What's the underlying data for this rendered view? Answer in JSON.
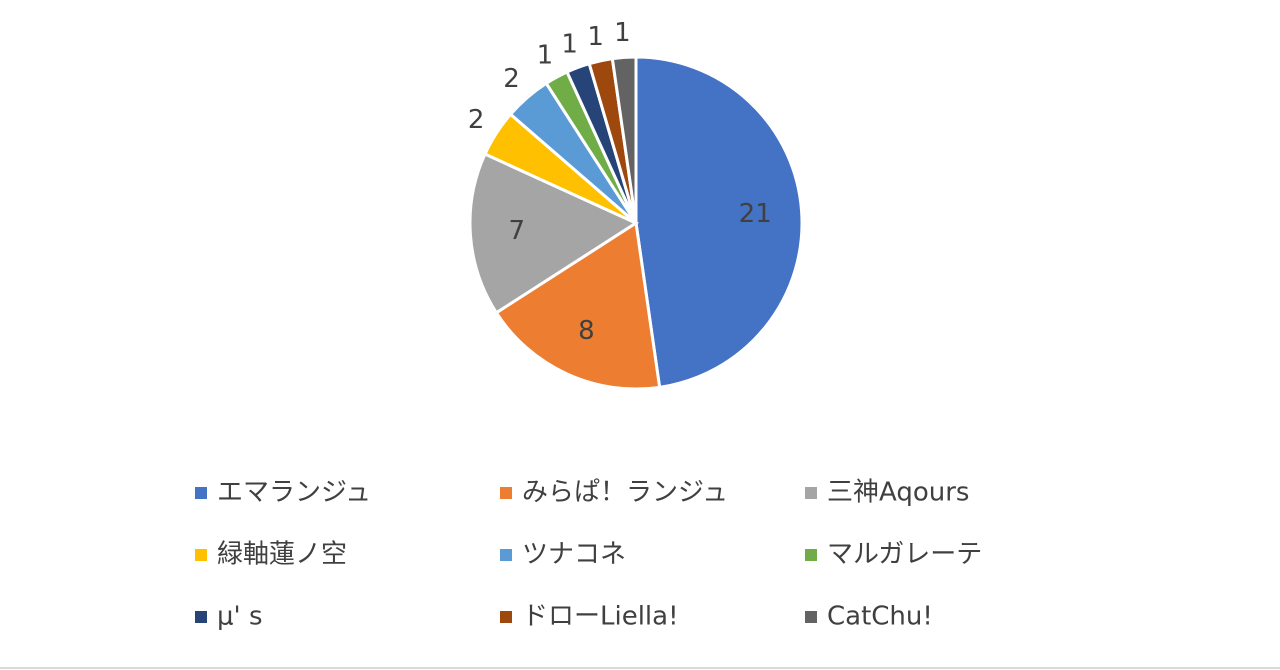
{
  "chart_data": {
    "type": "pie",
    "categories": [
      "エマランジュ",
      "みらぱ！ランジュ",
      "三神Aqours",
      "緑軸蓮ノ空",
      "ツナコネ",
      "マルガレーテ",
      "μ' s",
      "ドローLiella!",
      "CatChu!"
    ],
    "values": [
      21,
      8,
      7,
      2,
      2,
      1,
      1,
      1,
      1
    ],
    "colors": [
      "#4472c4",
      "#ed7d31",
      "#a5a5a5",
      "#ffc000",
      "#5b9bd5",
      "#70ad47",
      "#264478",
      "#9e480e",
      "#636363"
    ],
    "legend": "bottom"
  }
}
